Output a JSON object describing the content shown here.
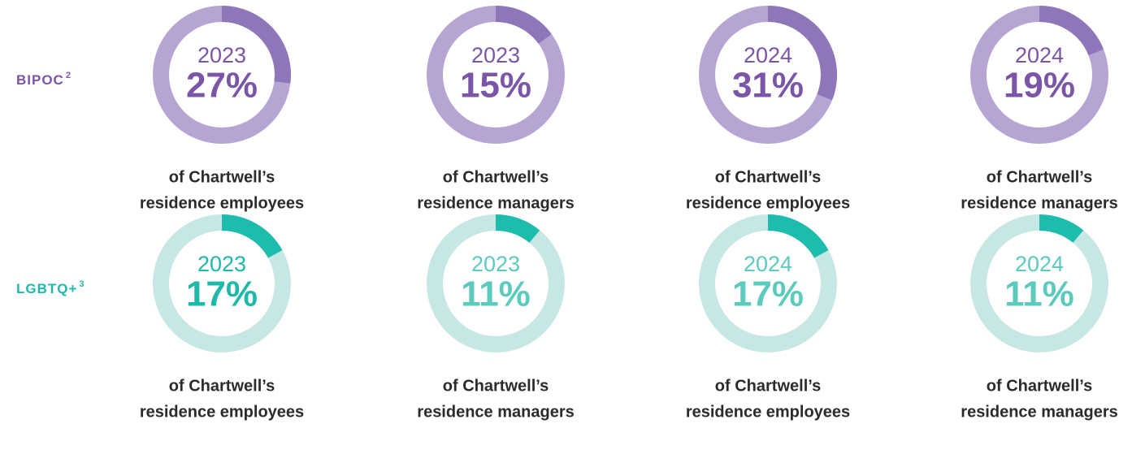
{
  "row_labels": [
    {
      "text": "BIPOC",
      "note": "2",
      "color": "#7b55a8"
    },
    {
      "text": "LGBTQ+",
      "note": "3",
      "color": "#1fb9a9"
    }
  ],
  "chart_data": [
    {
      "type": "donut",
      "title": "2023",
      "values": [
        27
      ],
      "value_labels": [
        "27%"
      ],
      "caption": [
        "of Chartwell’s",
        "residence employees"
      ],
      "color": "#8f76b8",
      "track_color": "#b6a5d3",
      "text_color": "#7b55a8"
    },
    {
      "type": "donut",
      "title": "2023",
      "values": [
        15
      ],
      "value_labels": [
        "15%"
      ],
      "caption": [
        "of Chartwell’s",
        "residence managers"
      ],
      "color": "#8f76b8",
      "track_color": "#b6a5d3",
      "text_color": "#7b55a8"
    },
    {
      "type": "donut",
      "title": "2024",
      "values": [
        31
      ],
      "value_labels": [
        "31%"
      ],
      "caption": [
        "of Chartwell’s",
        "residence employees"
      ],
      "color": "#8f76b8",
      "track_color": "#b6a5d3",
      "text_color": "#7b55a8"
    },
    {
      "type": "donut",
      "title": "2024",
      "values": [
        19
      ],
      "value_labels": [
        "19%"
      ],
      "caption": [
        "of Chartwell’s",
        "residence managers"
      ],
      "color": "#8f76b8",
      "track_color": "#b6a5d3",
      "text_color": "#7b55a8"
    },
    {
      "type": "donut",
      "title": "2023",
      "values": [
        17
      ],
      "value_labels": [
        "17%"
      ],
      "caption": [
        "of Chartwell’s",
        "residence employees"
      ],
      "color": "#1dbcad",
      "track_color": "#c6e7e3",
      "text_color": "#1fb9a9"
    },
    {
      "type": "donut",
      "title": "2023",
      "values": [
        11
      ],
      "value_labels": [
        "11%"
      ],
      "caption": [
        "of Chartwell’s",
        "residence managers"
      ],
      "color": "#1dbcad",
      "track_color": "#c6e7e3",
      "text_color": "#5ccabd"
    },
    {
      "type": "donut",
      "title": "2024",
      "values": [
        17
      ],
      "value_labels": [
        "17%"
      ],
      "caption": [
        "of Chartwell’s",
        "residence employees"
      ],
      "color": "#1dbcad",
      "track_color": "#c6e7e3",
      "text_color": "#5ccabd"
    },
    {
      "type": "donut",
      "title": "2024",
      "values": [
        11
      ],
      "value_labels": [
        "11%"
      ],
      "caption": [
        "of Chartwell’s",
        "residence managers"
      ],
      "color": "#1dbcad",
      "track_color": "#c6e7e3",
      "text_color": "#5ccabd"
    }
  ]
}
